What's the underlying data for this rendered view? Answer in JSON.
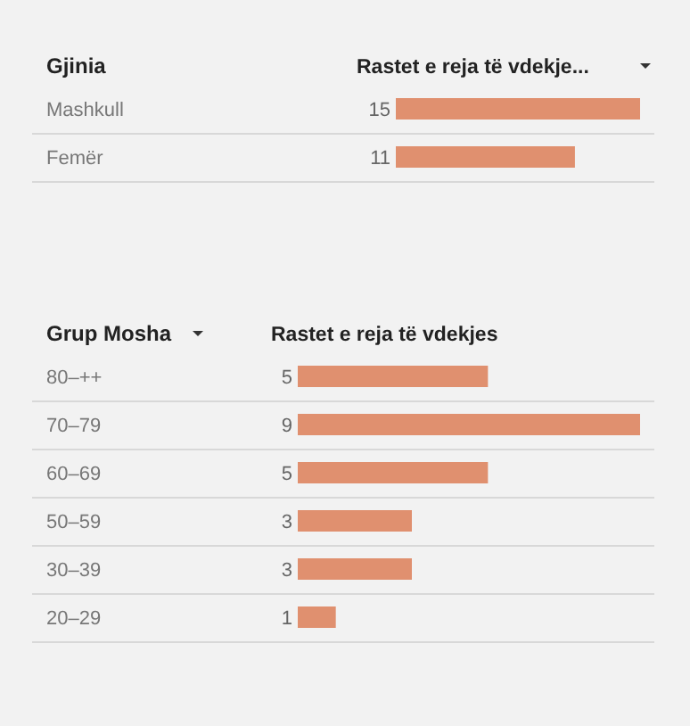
{
  "chart_data": [
    {
      "type": "bar",
      "orientation": "horizontal",
      "ylabel": "Gjinia",
      "xlabel": "Rastet e reja të vdekje...",
      "categories": [
        "Mashkull",
        "Femër"
      ],
      "values": [
        15,
        11
      ],
      "color": "#e0906f",
      "data_labels": true,
      "grid": "y"
    },
    {
      "type": "bar",
      "orientation": "horizontal",
      "ylabel": "Grup Mosha",
      "xlabel": "Rastet e reja të vdekjes",
      "categories": [
        "80–++",
        "70–79",
        "60–69",
        "50–59",
        "30–39",
        "20–29"
      ],
      "values": [
        5,
        9,
        5,
        3,
        3,
        1
      ],
      "color": "#e0906f",
      "data_labels": true,
      "grid": "y"
    }
  ]
}
